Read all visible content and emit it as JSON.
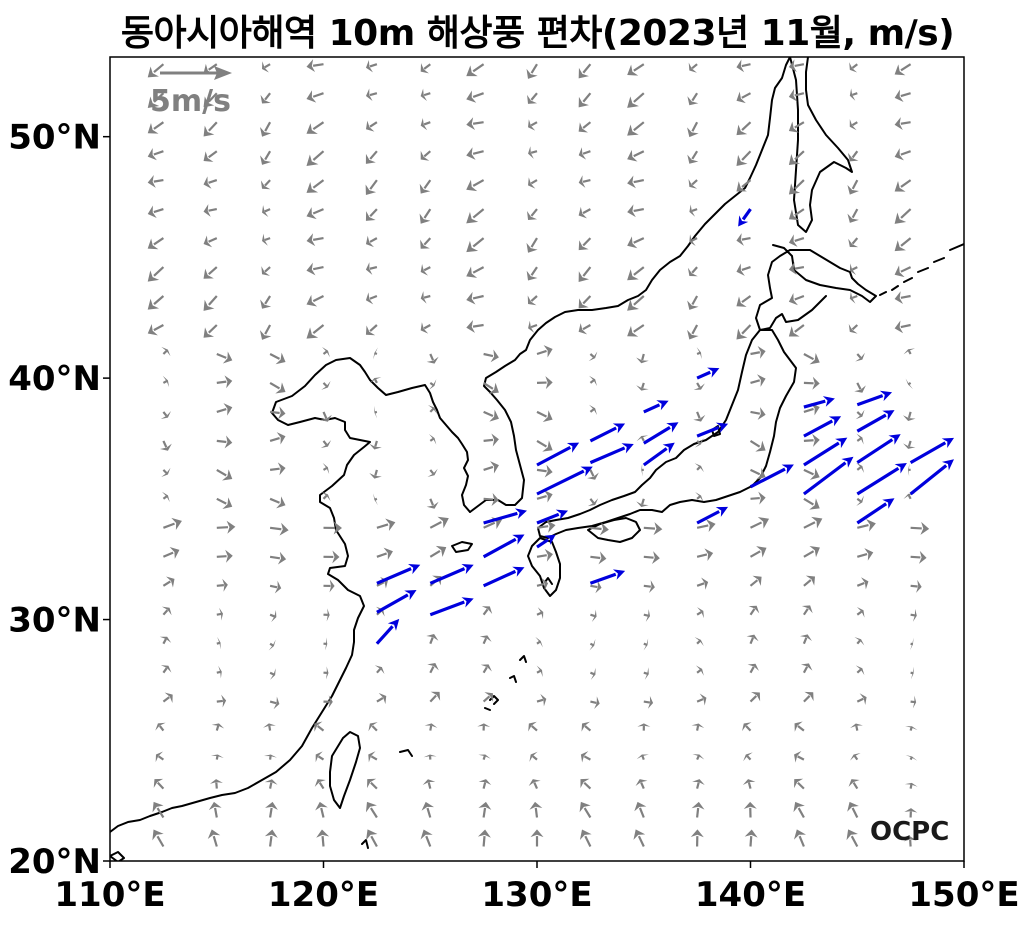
{
  "title": "동아시아해역 10m 해상풍 편차(2023년 11월, m/s)",
  "logo": "OCPC",
  "reference_vector": {
    "label": "5m/s",
    "magnitude": 5,
    "color": "#808080"
  },
  "colors": {
    "normal_arrow": "#808080",
    "strong_arrow": "#0000dd",
    "coast": "#000000"
  },
  "lon_ticks": [
    {
      "value": 110,
      "label": "110°E"
    },
    {
      "value": 120,
      "label": "120°E"
    },
    {
      "value": 130,
      "label": "130°E"
    },
    {
      "value": 140,
      "label": "140°E"
    },
    {
      "value": 150,
      "label": "150°E"
    }
  ],
  "lat_ticks": [
    {
      "value": 20,
      "label": "20°N"
    },
    {
      "value": 30,
      "label": "30°N"
    },
    {
      "value": 40,
      "label": "40°N"
    },
    {
      "value": 50,
      "label": "50°N"
    }
  ],
  "extent": {
    "lon": [
      110,
      150
    ],
    "lat": [
      20,
      53.3
    ]
  },
  "strong_vectors": [
    [
      122.5,
      31.5,
      3.5,
      1.5
    ],
    [
      122.5,
      30.3,
      3.2,
      1.8
    ],
    [
      122.5,
      29.0,
      1.8,
      2.0
    ],
    [
      125.0,
      31.5,
      3.5,
      1.5
    ],
    [
      125.0,
      30.2,
      3.5,
      1.3
    ],
    [
      127.5,
      34.0,
      3.5,
      1.0
    ],
    [
      127.5,
      32.6,
      3.3,
      1.8
    ],
    [
      127.5,
      31.4,
      3.3,
      1.5
    ],
    [
      130.0,
      35.2,
      4.5,
      2.2
    ],
    [
      130.0,
      36.4,
      3.4,
      1.8
    ],
    [
      130.0,
      34.0,
      2.5,
      1.0
    ],
    [
      130.0,
      33.0,
      1.5,
      1.0
    ],
    [
      132.5,
      36.5,
      3.5,
      1.5
    ],
    [
      132.5,
      37.4,
      2.8,
      1.4
    ],
    [
      132.5,
      31.5,
      2.8,
      1.0
    ],
    [
      135.0,
      36.4,
      2.5,
      1.8
    ],
    [
      135.0,
      37.3,
      2.8,
      1.7
    ],
    [
      135.0,
      38.6,
      2.0,
      0.9
    ],
    [
      137.5,
      37.6,
      2.5,
      1.0
    ],
    [
      137.5,
      40.0,
      1.8,
      0.8
    ],
    [
      137.5,
      34.0,
      2.5,
      1.3
    ],
    [
      140.0,
      35.5,
      3.5,
      1.8
    ],
    [
      140.0,
      47.0,
      -1.0,
      -1.4
    ],
    [
      142.5,
      35.2,
      4.0,
      3.0
    ],
    [
      142.5,
      36.4,
      3.5,
      2.2
    ],
    [
      142.5,
      37.6,
      3.0,
      1.6
    ],
    [
      142.5,
      38.8,
      2.5,
      0.7
    ],
    [
      145.0,
      34.0,
      3.0,
      2.0
    ],
    [
      145.0,
      35.2,
      4.0,
      2.5
    ],
    [
      145.0,
      36.5,
      3.5,
      2.3
    ],
    [
      145.0,
      37.8,
      3.0,
      1.7
    ],
    [
      145.0,
      38.9,
      2.8,
      1.0
    ],
    [
      147.5,
      35.2,
      3.5,
      2.8
    ],
    [
      147.5,
      36.5,
      3.5,
      2.0
    ]
  ]
}
